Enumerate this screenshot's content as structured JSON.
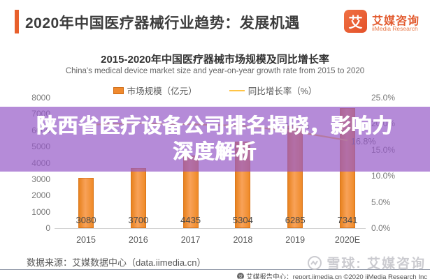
{
  "header": {
    "title": "2020年中国医疗器械行业趋势：发展机遇",
    "logo_glyph": "艾",
    "logo_name": "艾媒咨询",
    "logo_sub": "iiMedia Research"
  },
  "overlay": {
    "line1": "陕西省医疗设备公司排名揭晓，影响力",
    "line2": "深度解析"
  },
  "chart_data": {
    "type": "bar+line",
    "title": "2015-2020年中国医疗器械市场规模及同比增长率",
    "subtitle": "China's medical device market size and year-on-year growth rate from 2015 to 2020",
    "categories": [
      "2015",
      "2016",
      "2017",
      "2018",
      "2019",
      "2020E"
    ],
    "series": [
      {
        "name": "市场规模（亿元）",
        "type": "bar",
        "color": "#ED7D31",
        "values": [
          3080,
          3700,
          4435,
          5304,
          6285,
          7341
        ]
      },
      {
        "name": "同比增长率（%）",
        "type": "line",
        "color": "#FFC445",
        "values": [
          19.8,
          20.1,
          19.9,
          19.6,
          18.5,
          16.8
        ],
        "visible_point_labels": {
          "4": "18.5%",
          "5": "16.8%"
        }
      }
    ],
    "left_axis": {
      "ticks": [
        0,
        1000,
        2000,
        3000,
        4000,
        5000,
        6000,
        7000,
        8000
      ],
      "range": [
        0,
        8000
      ]
    },
    "right_axis": {
      "ticks": [
        "0.0%",
        "5.0%",
        "10.0%",
        "15.0%",
        "20.0%",
        "25.0%"
      ],
      "range": [
        0,
        25
      ]
    },
    "grid": false,
    "legend_position": "top"
  },
  "footer": {
    "source": "数据来源：艾媒数据中心（data.iimedia.cn）",
    "report_icon_glyph": "艾",
    "report_line": "艾媒报告中心：report.iimedia.cn ©2020 iiMedia Research Inc",
    "watermark": "雪球: 艾媒咨询"
  }
}
